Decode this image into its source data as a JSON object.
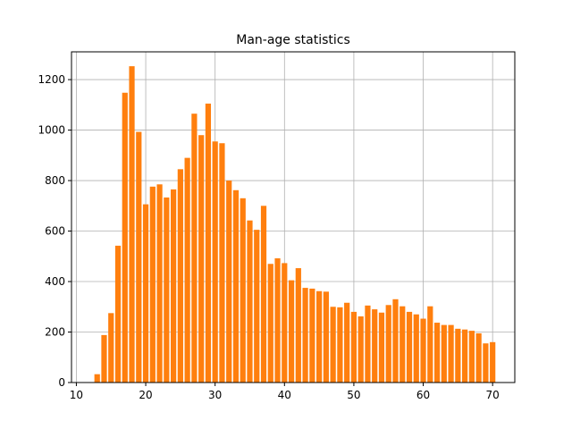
{
  "chart_data": {
    "type": "bar",
    "title": "Man-age statistics",
    "xlabel": "",
    "ylabel": "",
    "xlim": [
      9.3,
      73.2
    ],
    "ylim": [
      0,
      1310
    ],
    "x_ticks": [
      10,
      20,
      30,
      40,
      50,
      60,
      70
    ],
    "y_ticks": [
      0,
      200,
      400,
      600,
      800,
      1000,
      1200
    ],
    "grid": true,
    "bar_color": "#ff7f0e",
    "grid_color": "#b0b0b0",
    "x": [
      13,
      14,
      15,
      16,
      17,
      18,
      19,
      20,
      21,
      22,
      23,
      24,
      25,
      26,
      27,
      28,
      29,
      30,
      31,
      32,
      33,
      34,
      35,
      36,
      37,
      38,
      39,
      40,
      41,
      42,
      43,
      44,
      45,
      46,
      47,
      48,
      49,
      50,
      51,
      52,
      53,
      54,
      55,
      56,
      57,
      58,
      59,
      60,
      61,
      62,
      63,
      64,
      65,
      66,
      67,
      68,
      69,
      70
    ],
    "values": [
      33,
      188,
      275,
      542,
      1148,
      1253,
      993,
      706,
      776,
      785,
      733,
      765,
      845,
      890,
      1065,
      980,
      1105,
      955,
      948,
      800,
      762,
      730,
      642,
      605,
      700,
      470,
      492,
      473,
      405,
      453,
      375,
      372,
      362,
      360,
      300,
      298,
      316,
      280,
      262,
      305,
      290,
      277,
      307,
      330,
      302,
      280,
      270,
      253,
      302,
      237,
      228,
      228,
      213,
      210,
      205,
      195,
      155,
      160
    ]
  }
}
